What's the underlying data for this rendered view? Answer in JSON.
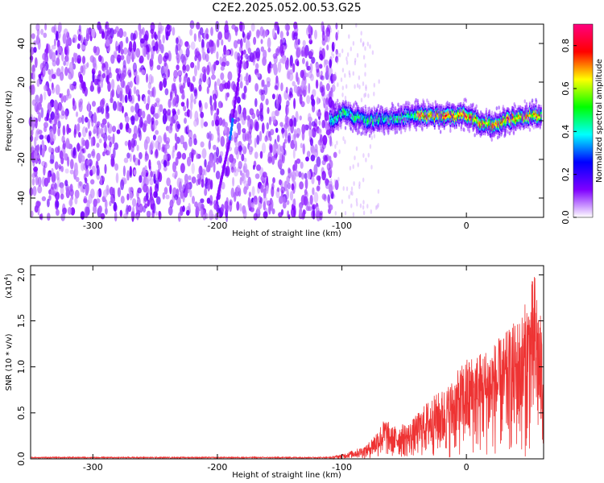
{
  "figure": {
    "title": "C2E2.2025.052.00.53.G25"
  },
  "chart_data": [
    {
      "type": "heatmap",
      "title": "C2E2.2025.052.00.53.G25",
      "xlabel": "Height of straight line (km)",
      "ylabel": "Frequency (Hz)",
      "xlim": [
        -350,
        62
      ],
      "ylim": [
        -50,
        50
      ],
      "xticks": [
        "-300",
        "-200",
        "-100",
        "0"
      ],
      "yticks": [
        "-40",
        "-20",
        "0",
        "20",
        "40"
      ],
      "colorbar": {
        "label": "Normalized spectral amplitude",
        "range": [
          0.0,
          0.9
        ],
        "ticks": [
          "0.0",
          "0.2",
          "0.4",
          "0.6",
          "0.8"
        ],
        "colors": [
          "#ffffff",
          "#7f00ff",
          "#0000ff",
          "#00ffff",
          "#00ff00",
          "#ffff00",
          "#ff0000",
          "#ff007f"
        ]
      },
      "description_points": {
        "noise_region_x": [
          -350,
          -110
        ],
        "signal_track": [
          {
            "x": -110,
            "y": 0
          },
          {
            "x": -100,
            "y": 4
          },
          {
            "x": -80,
            "y": 0
          },
          {
            "x": -60,
            "y": 1
          },
          {
            "x": -40,
            "y": 3
          },
          {
            "x": -20,
            "y": 2
          },
          {
            "x": 0,
            "y": 3
          },
          {
            "x": 10,
            "y": -1
          },
          {
            "x": 20,
            "y": -2
          },
          {
            "x": 30,
            "y": 0
          },
          {
            "x": 45,
            "y": 2
          },
          {
            "x": 60,
            "y": 3
          }
        ],
        "streak": [
          {
            "x": -200,
            "y": -40
          },
          {
            "x": -190,
            "y": -10
          },
          {
            "x": -180,
            "y": 35
          }
        ]
      }
    },
    {
      "type": "line",
      "xlabel": "Height of straight line (km)",
      "ylabel": "SNR (10 * v/v)",
      "yscale_note": "(x10",
      "yscale_exp": "4",
      "xlim": [
        -350,
        62
      ],
      "ylim": [
        0,
        2.1
      ],
      "xticks": [
        "-300",
        "-200",
        "-100",
        "0"
      ],
      "yticks": [
        "0.0",
        "0.5",
        "1.0",
        "1.5",
        "2.0"
      ],
      "color": "#ee3333",
      "envelope": [
        {
          "x": -350,
          "y": 0.02
        },
        {
          "x": -110,
          "y": 0.02
        },
        {
          "x": -100,
          "y": 0.05
        },
        {
          "x": -80,
          "y": 0.15
        },
        {
          "x": -65,
          "y": 0.45
        },
        {
          "x": -60,
          "y": 0.35
        },
        {
          "x": -45,
          "y": 0.4
        },
        {
          "x": -30,
          "y": 0.65
        },
        {
          "x": -15,
          "y": 0.8
        },
        {
          "x": 0,
          "y": 1.1
        },
        {
          "x": 15,
          "y": 1.2
        },
        {
          "x": 30,
          "y": 1.35
        },
        {
          "x": 45,
          "y": 1.6
        },
        {
          "x": 55,
          "y": 2.05
        },
        {
          "x": 62,
          "y": 1.3
        }
      ]
    }
  ]
}
